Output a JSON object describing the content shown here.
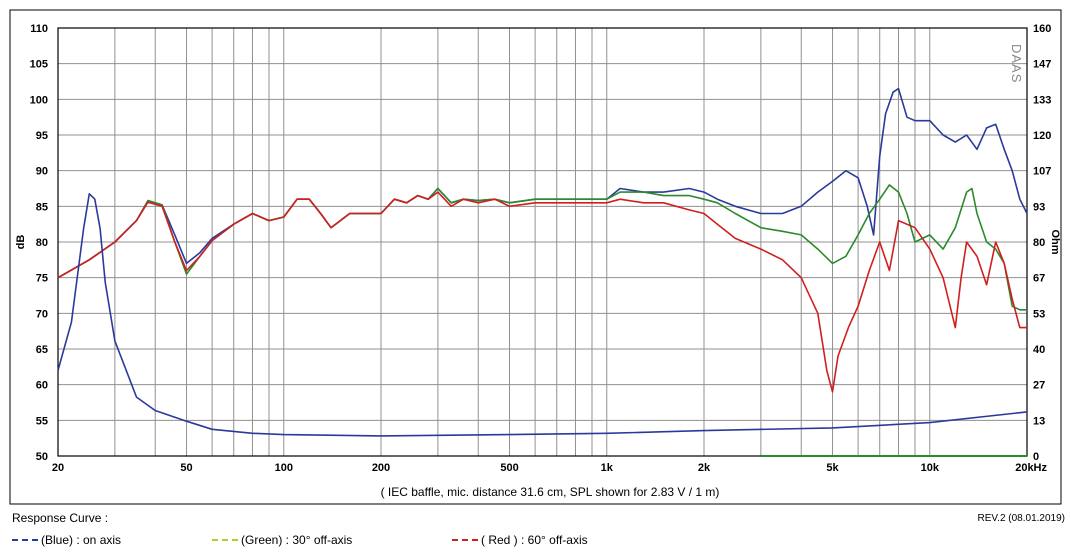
{
  "chart_data": {
    "type": "line",
    "title": "",
    "xlabel": "",
    "x_scale": "log",
    "xlim": [
      20,
      20000
    ],
    "x_ticks": [
      20,
      50,
      100,
      200,
      500,
      1000,
      2000,
      5000,
      10000,
      20000
    ],
    "x_tick_labels": [
      "20",
      "50",
      "100",
      "200",
      "500",
      "1k",
      "2k",
      "5k",
      "10k",
      "20kHz"
    ],
    "ylabel_left": "dB",
    "ylim_left": [
      50,
      110
    ],
    "y_ticks_left": [
      50,
      55,
      60,
      65,
      70,
      75,
      80,
      85,
      90,
      95,
      100,
      105,
      110
    ],
    "ylabel_right": "Ohm",
    "ylim_right": [
      0,
      160
    ],
    "y_ticks_right": [
      "0",
      "13",
      "27",
      "40",
      "53",
      "67",
      "80",
      "93",
      "107",
      "120",
      "133",
      "147",
      "160"
    ],
    "grid": true,
    "caption": "( IEC baffle, mic. distance 31.6 cm, SPL shown for 2.83 V / 1 m)",
    "watermark": "DAAS",
    "series": [
      {
        "name": "(Blue)  : on axis",
        "color": "#2a3a9c",
        "axis": "left",
        "points": [
          [
            20,
            75
          ],
          [
            25,
            77.5
          ],
          [
            30,
            80
          ],
          [
            35,
            83
          ],
          [
            38,
            85.8
          ],
          [
            42,
            85.2
          ],
          [
            46,
            81
          ],
          [
            50,
            77
          ],
          [
            55,
            78.5
          ],
          [
            60,
            80.5
          ],
          [
            70,
            82.5
          ],
          [
            80,
            84
          ],
          [
            90,
            83
          ],
          [
            100,
            83.5
          ],
          [
            110,
            86
          ],
          [
            120,
            86
          ],
          [
            130,
            84
          ],
          [
            140,
            82
          ],
          [
            160,
            84
          ],
          [
            180,
            84
          ],
          [
            200,
            84
          ],
          [
            220,
            86
          ],
          [
            240,
            85.5
          ],
          [
            260,
            86.5
          ],
          [
            280,
            86
          ],
          [
            300,
            87.5
          ],
          [
            330,
            85.5
          ],
          [
            360,
            86
          ],
          [
            400,
            85.8
          ],
          [
            450,
            86
          ],
          [
            500,
            85.5
          ],
          [
            600,
            86
          ],
          [
            700,
            86
          ],
          [
            800,
            86
          ],
          [
            1000,
            86
          ],
          [
            1100,
            87.5
          ],
          [
            1300,
            87
          ],
          [
            1500,
            87
          ],
          [
            1800,
            87.5
          ],
          [
            2000,
            87
          ],
          [
            2200,
            86
          ],
          [
            2500,
            85
          ],
          [
            3000,
            84
          ],
          [
            3500,
            84
          ],
          [
            4000,
            85
          ],
          [
            4500,
            87
          ],
          [
            5000,
            88.5
          ],
          [
            5500,
            90
          ],
          [
            6000,
            89
          ],
          [
            6400,
            85
          ],
          [
            6700,
            81
          ],
          [
            7000,
            92
          ],
          [
            7300,
            98
          ],
          [
            7700,
            101
          ],
          [
            8000,
            101.5
          ],
          [
            8500,
            97.5
          ],
          [
            9000,
            97
          ],
          [
            10000,
            97
          ],
          [
            11000,
            95
          ],
          [
            12000,
            94
          ],
          [
            13000,
            95
          ],
          [
            14000,
            93
          ],
          [
            15000,
            96
          ],
          [
            16000,
            96.5
          ],
          [
            17000,
            93
          ],
          [
            18000,
            90
          ],
          [
            19000,
            86
          ],
          [
            20000,
            84
          ]
        ]
      },
      {
        "name": "(Green) : 30° off-axis",
        "color": "#2b8a2b",
        "axis": "left",
        "points": [
          [
            20,
            75
          ],
          [
            25,
            77.5
          ],
          [
            30,
            80
          ],
          [
            35,
            83
          ],
          [
            38,
            85.8
          ],
          [
            42,
            85.2
          ],
          [
            46,
            80
          ],
          [
            50,
            75.5
          ],
          [
            55,
            78
          ],
          [
            60,
            80.2
          ],
          [
            70,
            82.5
          ],
          [
            80,
            84
          ],
          [
            90,
            83
          ],
          [
            100,
            83.5
          ],
          [
            110,
            86
          ],
          [
            120,
            86
          ],
          [
            130,
            84
          ],
          [
            140,
            82
          ],
          [
            160,
            84
          ],
          [
            180,
            84
          ],
          [
            200,
            84
          ],
          [
            220,
            86
          ],
          [
            240,
            85.5
          ],
          [
            260,
            86.5
          ],
          [
            280,
            86
          ],
          [
            300,
            87.5
          ],
          [
            330,
            85.5
          ],
          [
            360,
            86
          ],
          [
            400,
            85.8
          ],
          [
            450,
            86
          ],
          [
            500,
            85.5
          ],
          [
            600,
            86
          ],
          [
            700,
            86
          ],
          [
            800,
            86
          ],
          [
            1000,
            86
          ],
          [
            1100,
            87
          ],
          [
            1300,
            87
          ],
          [
            1500,
            86.5
          ],
          [
            1800,
            86.5
          ],
          [
            2000,
            86
          ],
          [
            2200,
            85.5
          ],
          [
            2500,
            84
          ],
          [
            3000,
            82
          ],
          [
            3500,
            81.5
          ],
          [
            4000,
            81
          ],
          [
            4500,
            79
          ],
          [
            5000,
            77
          ],
          [
            5500,
            78
          ],
          [
            6000,
            81
          ],
          [
            6500,
            84
          ],
          [
            7000,
            86
          ],
          [
            7500,
            88
          ],
          [
            8000,
            87
          ],
          [
            8500,
            84
          ],
          [
            9000,
            80
          ],
          [
            10000,
            81
          ],
          [
            11000,
            79
          ],
          [
            12000,
            82
          ],
          [
            13000,
            87
          ],
          [
            13500,
            87.5
          ],
          [
            14000,
            84
          ],
          [
            15000,
            80
          ],
          [
            16000,
            79
          ],
          [
            17000,
            77
          ],
          [
            18000,
            71
          ],
          [
            19000,
            70.5
          ],
          [
            20000,
            70.5
          ]
        ]
      },
      {
        "name": "( Red ) : 60° off-axis",
        "color": "#d11f1f",
        "axis": "left",
        "points": [
          [
            20,
            75
          ],
          [
            25,
            77.5
          ],
          [
            30,
            80
          ],
          [
            35,
            83
          ],
          [
            38,
            85.6
          ],
          [
            42,
            85
          ],
          [
            46,
            80
          ],
          [
            50,
            76
          ],
          [
            55,
            78
          ],
          [
            60,
            80.2
          ],
          [
            70,
            82.5
          ],
          [
            80,
            84
          ],
          [
            90,
            83
          ],
          [
            100,
            83.5
          ],
          [
            110,
            86
          ],
          [
            120,
            86
          ],
          [
            130,
            84
          ],
          [
            140,
            82
          ],
          [
            160,
            84
          ],
          [
            180,
            84
          ],
          [
            200,
            84
          ],
          [
            220,
            86
          ],
          [
            240,
            85.5
          ],
          [
            260,
            86.5
          ],
          [
            280,
            86
          ],
          [
            300,
            87
          ],
          [
            330,
            85
          ],
          [
            360,
            86
          ],
          [
            400,
            85.5
          ],
          [
            450,
            86
          ],
          [
            500,
            85
          ],
          [
            600,
            85.5
          ],
          [
            700,
            85.5
          ],
          [
            800,
            85.5
          ],
          [
            1000,
            85.5
          ],
          [
            1100,
            86
          ],
          [
            1300,
            85.5
          ],
          [
            1500,
            85.5
          ],
          [
            1800,
            84.5
          ],
          [
            2000,
            84
          ],
          [
            2200,
            82.5
          ],
          [
            2500,
            80.5
          ],
          [
            3000,
            79
          ],
          [
            3500,
            77.5
          ],
          [
            4000,
            75
          ],
          [
            4500,
            70
          ],
          [
            4800,
            62
          ],
          [
            5000,
            59
          ],
          [
            5200,
            64
          ],
          [
            5600,
            68
          ],
          [
            6000,
            71
          ],
          [
            6500,
            76
          ],
          [
            7000,
            80
          ],
          [
            7500,
            76
          ],
          [
            8000,
            83
          ],
          [
            9000,
            82
          ],
          [
            10000,
            79
          ],
          [
            11000,
            75
          ],
          [
            12000,
            68
          ],
          [
            12500,
            75
          ],
          [
            13000,
            80
          ],
          [
            14000,
            78
          ],
          [
            15000,
            74
          ],
          [
            16000,
            80
          ],
          [
            17000,
            77
          ],
          [
            18000,
            72
          ],
          [
            19000,
            68
          ],
          [
            20000,
            68
          ]
        ]
      },
      {
        "name": "Impedance",
        "color": "#2a3a9c",
        "axis": "right",
        "points": [
          [
            20,
            32
          ],
          [
            22,
            50
          ],
          [
            24,
            85
          ],
          [
            25,
            98
          ],
          [
            26,
            96
          ],
          [
            27,
            85
          ],
          [
            28,
            65
          ],
          [
            30,
            43
          ],
          [
            35,
            22
          ],
          [
            40,
            17
          ],
          [
            50,
            13
          ],
          [
            60,
            10
          ],
          [
            80,
            8.5
          ],
          [
            100,
            8
          ],
          [
            200,
            7.5
          ],
          [
            500,
            8
          ],
          [
            1000,
            8.5
          ],
          [
            2000,
            9.5
          ],
          [
            5000,
            10.5
          ],
          [
            10000,
            12.5
          ],
          [
            20000,
            16.5
          ]
        ]
      },
      {
        "name": "Reference",
        "color": "#2b8a2b",
        "axis": "right",
        "points": [
          [
            3000,
            0
          ],
          [
            20000,
            0
          ]
        ]
      }
    ],
    "legend_title": "Response Curve :",
    "revision": "REV.2 (08.01.2019)"
  }
}
